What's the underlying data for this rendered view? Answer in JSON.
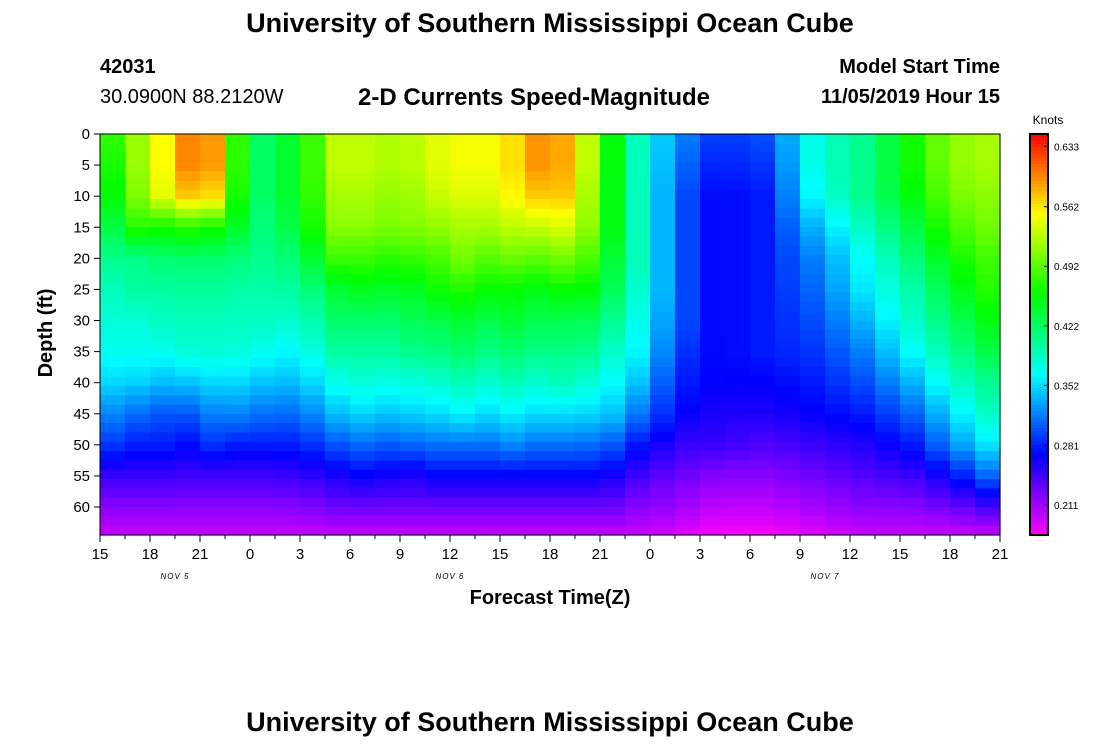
{
  "header": {
    "title": "University of Southern Mississippi Ocean Cube",
    "station_id": "42031",
    "station_coords": "30.0900N 88.2120W",
    "plot_title": "2-D Currents Speed-Magnitude",
    "model_start_label": "Model Start Time",
    "model_start_value": "11/05/2019 Hour 15"
  },
  "footer": {
    "title": "University of Southern Mississippi Ocean Cube"
  },
  "chart_data": {
    "type": "heatmap",
    "title": "2-D Currents Speed-Magnitude",
    "xlabel": "Forecast Time(Z)",
    "ylabel": "Depth (ft)",
    "x_hours_range": [
      0,
      54
    ],
    "x_step_hours": 1.5,
    "x_tick_labels": [
      "15",
      "18",
      "21",
      "0",
      "3",
      "6",
      "9",
      "12",
      "15",
      "18",
      "21",
      "0",
      "3",
      "6",
      "9",
      "12",
      "15",
      "18",
      "21"
    ],
    "date_labels": [
      {
        "label": "NOV 5",
        "hour": 4.5
      },
      {
        "label": "NOV 6",
        "hour": 21
      },
      {
        "label": "NOV 7",
        "hour": 43.5
      }
    ],
    "y_range": [
      0,
      64.5
    ],
    "y_ticks": [
      0,
      5,
      10,
      15,
      20,
      25,
      30,
      35,
      40,
      45,
      50,
      55,
      60
    ],
    "depth_levels": [
      0,
      5,
      10,
      15,
      20,
      25,
      30,
      35,
      40,
      45,
      50,
      55,
      60,
      64
    ],
    "colorbar": {
      "label": "Knots",
      "range": [
        0.176,
        0.6475
      ],
      "ticks": [
        0.633,
        0.562,
        0.492,
        0.422,
        0.352,
        0.281,
        0.211
      ]
    },
    "profiles_times": [
      0,
      1,
      2,
      3,
      4,
      5,
      6,
      7,
      8,
      9,
      10,
      12,
      14,
      16,
      18,
      19,
      20,
      21,
      22,
      23,
      24,
      25,
      26,
      27,
      28,
      29,
      30,
      31,
      32,
      33,
      35,
      37,
      40,
      43,
      46,
      49,
      51,
      53,
      54
    ],
    "speed_profiles": [
      [
        0.47,
        0.46,
        0.45,
        0.42,
        0.4,
        0.39,
        0.38,
        0.37,
        0.35,
        0.32,
        0.29,
        0.25,
        0.22,
        0.2
      ],
      [
        0.48,
        0.47,
        0.46,
        0.44,
        0.41,
        0.39,
        0.38,
        0.37,
        0.35,
        0.32,
        0.29,
        0.25,
        0.22,
        0.2
      ],
      [
        0.51,
        0.51,
        0.5,
        0.47,
        0.41,
        0.4,
        0.38,
        0.37,
        0.35,
        0.31,
        0.28,
        0.25,
        0.22,
        0.2
      ],
      [
        0.53,
        0.53,
        0.52,
        0.48,
        0.41,
        0.4,
        0.38,
        0.37,
        0.34,
        0.31,
        0.28,
        0.25,
        0.22,
        0.2
      ],
      [
        0.56,
        0.56,
        0.55,
        0.46,
        0.42,
        0.4,
        0.39,
        0.37,
        0.34,
        0.3,
        0.28,
        0.25,
        0.22,
        0.2
      ],
      [
        0.59,
        0.59,
        0.57,
        0.47,
        0.42,
        0.4,
        0.39,
        0.38,
        0.34,
        0.3,
        0.27,
        0.25,
        0.22,
        0.2
      ],
      [
        0.62,
        0.62,
        0.58,
        0.48,
        0.42,
        0.41,
        0.39,
        0.38,
        0.35,
        0.31,
        0.28,
        0.24,
        0.22,
        0.2
      ],
      [
        0.58,
        0.58,
        0.56,
        0.46,
        0.42,
        0.4,
        0.39,
        0.38,
        0.35,
        0.32,
        0.29,
        0.25,
        0.22,
        0.2
      ],
      [
        0.5,
        0.5,
        0.49,
        0.46,
        0.42,
        0.4,
        0.39,
        0.38,
        0.35,
        0.32,
        0.28,
        0.25,
        0.22,
        0.2
      ],
      [
        0.4,
        0.4,
        0.4,
        0.4,
        0.4,
        0.39,
        0.38,
        0.37,
        0.35,
        0.32,
        0.28,
        0.24,
        0.22,
        0.2
      ],
      [
        0.43,
        0.43,
        0.43,
        0.42,
        0.41,
        0.4,
        0.39,
        0.37,
        0.34,
        0.31,
        0.28,
        0.25,
        0.22,
        0.2
      ],
      [
        0.45,
        0.45,
        0.45,
        0.44,
        0.42,
        0.4,
        0.38,
        0.36,
        0.34,
        0.31,
        0.28,
        0.25,
        0.22,
        0.2
      ],
      [
        0.53,
        0.53,
        0.52,
        0.51,
        0.48,
        0.44,
        0.42,
        0.4,
        0.37,
        0.34,
        0.3,
        0.26,
        0.23,
        0.2
      ],
      [
        0.53,
        0.53,
        0.52,
        0.51,
        0.48,
        0.45,
        0.42,
        0.4,
        0.38,
        0.35,
        0.31,
        0.27,
        0.23,
        0.2
      ],
      [
        0.52,
        0.52,
        0.51,
        0.5,
        0.47,
        0.44,
        0.42,
        0.4,
        0.37,
        0.34,
        0.3,
        0.26,
        0.23,
        0.2
      ],
      [
        0.53,
        0.53,
        0.52,
        0.51,
        0.48,
        0.45,
        0.43,
        0.41,
        0.38,
        0.35,
        0.31,
        0.26,
        0.23,
        0.2
      ],
      [
        0.54,
        0.54,
        0.53,
        0.51,
        0.48,
        0.46,
        0.43,
        0.41,
        0.38,
        0.35,
        0.31,
        0.27,
        0.23,
        0.2
      ],
      [
        0.55,
        0.55,
        0.54,
        0.52,
        0.5,
        0.47,
        0.44,
        0.42,
        0.39,
        0.36,
        0.32,
        0.27,
        0.23,
        0.2
      ],
      [
        0.55,
        0.55,
        0.54,
        0.52,
        0.5,
        0.47,
        0.44,
        0.42,
        0.39,
        0.36,
        0.31,
        0.27,
        0.23,
        0.2
      ],
      [
        0.55,
        0.55,
        0.54,
        0.52,
        0.49,
        0.46,
        0.43,
        0.41,
        0.38,
        0.35,
        0.31,
        0.27,
        0.23,
        0.2
      ],
      [
        0.55,
        0.55,
        0.54,
        0.52,
        0.49,
        0.46,
        0.44,
        0.41,
        0.39,
        0.36,
        0.32,
        0.27,
        0.23,
        0.2
      ],
      [
        0.57,
        0.57,
        0.56,
        0.53,
        0.5,
        0.46,
        0.44,
        0.42,
        0.39,
        0.36,
        0.32,
        0.27,
        0.23,
        0.2
      ],
      [
        0.59,
        0.59,
        0.57,
        0.53,
        0.49,
        0.45,
        0.43,
        0.41,
        0.38,
        0.35,
        0.31,
        0.27,
        0.23,
        0.2
      ],
      [
        0.6,
        0.6,
        0.58,
        0.54,
        0.5,
        0.46,
        0.43,
        0.41,
        0.39,
        0.36,
        0.32,
        0.27,
        0.23,
        0.2
      ],
      [
        0.58,
        0.58,
        0.57,
        0.54,
        0.5,
        0.46,
        0.43,
        0.41,
        0.39,
        0.35,
        0.31,
        0.27,
        0.23,
        0.2
      ],
      [
        0.54,
        0.54,
        0.53,
        0.52,
        0.49,
        0.46,
        0.43,
        0.41,
        0.38,
        0.35,
        0.31,
        0.27,
        0.23,
        0.2
      ],
      [
        0.5,
        0.5,
        0.49,
        0.49,
        0.47,
        0.45,
        0.42,
        0.4,
        0.38,
        0.35,
        0.31,
        0.27,
        0.23,
        0.2
      ],
      [
        0.44,
        0.44,
        0.44,
        0.44,
        0.43,
        0.42,
        0.4,
        0.38,
        0.36,
        0.34,
        0.3,
        0.26,
        0.23,
        0.2
      ],
      [
        0.4,
        0.4,
        0.4,
        0.4,
        0.4,
        0.39,
        0.38,
        0.37,
        0.35,
        0.32,
        0.28,
        0.25,
        0.22,
        0.2
      ],
      [
        0.36,
        0.36,
        0.36,
        0.36,
        0.36,
        0.36,
        0.35,
        0.34,
        0.32,
        0.3,
        0.27,
        0.24,
        0.22,
        0.2
      ],
      [
        0.32,
        0.31,
        0.3,
        0.3,
        0.3,
        0.3,
        0.3,
        0.29,
        0.28,
        0.27,
        0.25,
        0.23,
        0.21,
        0.19
      ],
      [
        0.29,
        0.28,
        0.27,
        0.27,
        0.27,
        0.27,
        0.27,
        0.27,
        0.27,
        0.26,
        0.25,
        0.22,
        0.2,
        0.18
      ],
      [
        0.3,
        0.29,
        0.28,
        0.28,
        0.28,
        0.28,
        0.28,
        0.28,
        0.27,
        0.26,
        0.24,
        0.22,
        0.2,
        0.18
      ],
      [
        0.38,
        0.38,
        0.37,
        0.34,
        0.32,
        0.31,
        0.3,
        0.29,
        0.28,
        0.27,
        0.25,
        0.23,
        0.21,
        0.19
      ],
      [
        0.41,
        0.41,
        0.41,
        0.39,
        0.37,
        0.36,
        0.34,
        0.32,
        0.3,
        0.28,
        0.26,
        0.24,
        0.22,
        0.2
      ],
      [
        0.47,
        0.47,
        0.46,
        0.44,
        0.42,
        0.4,
        0.39,
        0.37,
        0.34,
        0.31,
        0.28,
        0.25,
        0.22,
        0.2
      ],
      [
        0.51,
        0.51,
        0.5,
        0.48,
        0.46,
        0.44,
        0.42,
        0.4,
        0.38,
        0.35,
        0.32,
        0.27,
        0.23,
        0.2
      ],
      [
        0.52,
        0.52,
        0.51,
        0.5,
        0.48,
        0.47,
        0.45,
        0.43,
        0.4,
        0.38,
        0.35,
        0.3,
        0.24,
        0.2
      ],
      [
        0.52,
        0.52,
        0.51,
        0.5,
        0.49,
        0.48,
        0.46,
        0.44,
        0.42,
        0.4,
        0.37,
        0.33,
        0.26,
        0.21
      ]
    ]
  }
}
